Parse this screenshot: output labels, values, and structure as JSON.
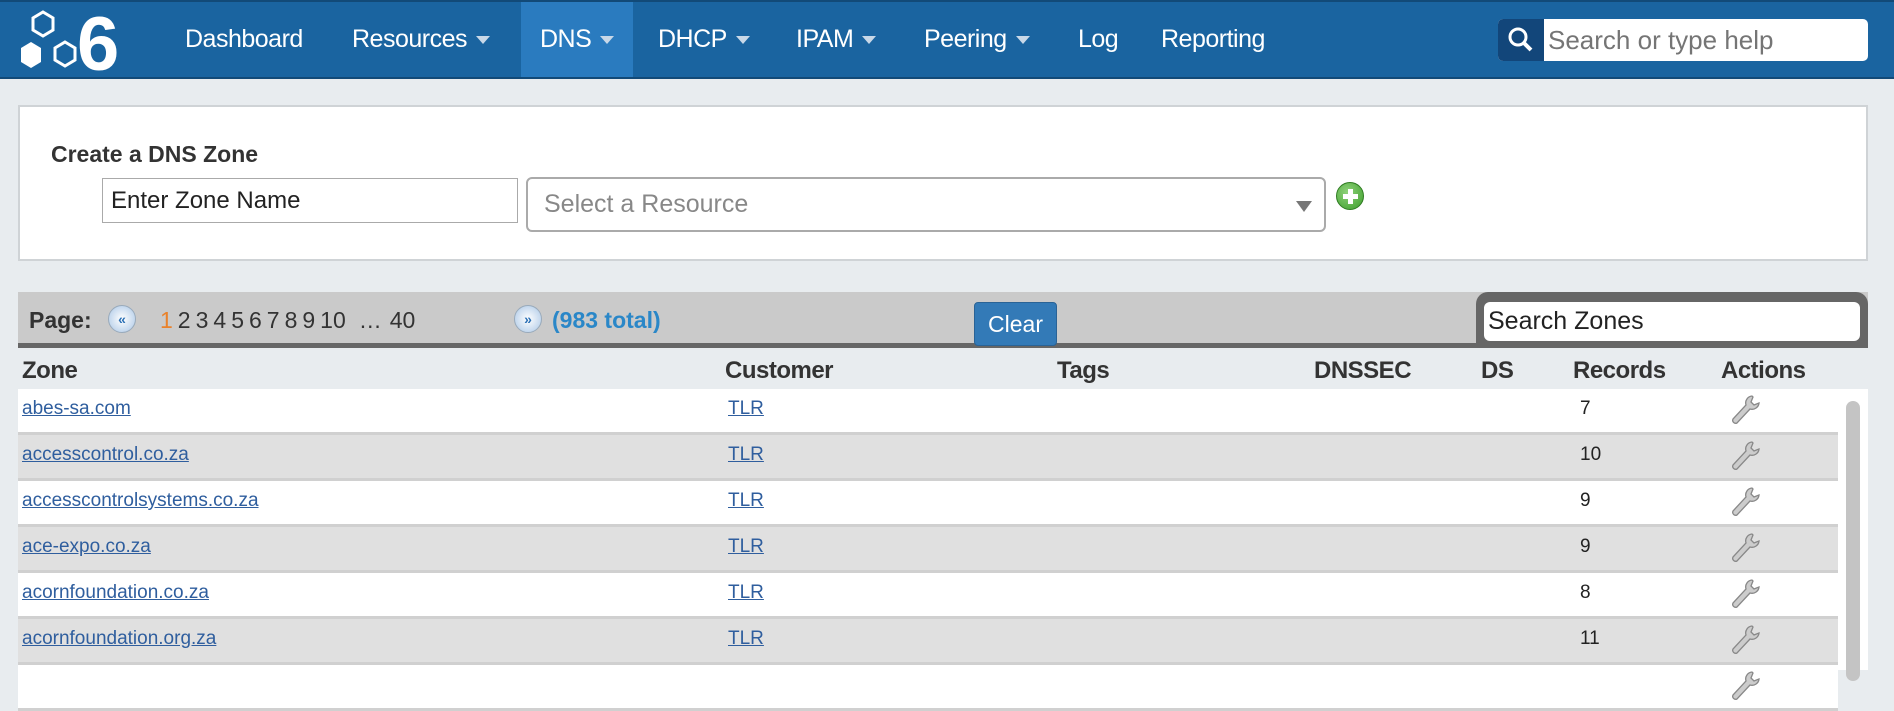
{
  "nav": {
    "items": [
      {
        "label": "Dashboard",
        "dropdown": false
      },
      {
        "label": "Resources",
        "dropdown": true
      },
      {
        "label": "DNS",
        "dropdown": true,
        "active": true
      },
      {
        "label": "DHCP",
        "dropdown": true
      },
      {
        "label": "IPAM",
        "dropdown": true
      },
      {
        "label": "Peering",
        "dropdown": true
      },
      {
        "label": "Log",
        "dropdown": false
      },
      {
        "label": "Reporting",
        "dropdown": false
      }
    ],
    "search_placeholder": "Search or type help"
  },
  "create": {
    "title": "Create a DNS Zone",
    "zone_placeholder": "Enter Zone Name",
    "resource_placeholder": "Select a Resource",
    "add_icon": "plus-circle-icon"
  },
  "pager": {
    "label": "Page:",
    "current": "1",
    "pages": [
      "2",
      "3",
      "4",
      "5",
      "6",
      "7",
      "8",
      "9",
      "10",
      "…",
      "40"
    ],
    "total": "(983 total)",
    "clear": "Clear",
    "search_placeholder": "Search Zones"
  },
  "table": {
    "headers": [
      "Zone",
      "Customer",
      "Tags",
      "DNSSEC",
      "DS",
      "Records",
      "Actions"
    ],
    "rows": [
      {
        "zone": "abes-sa.com",
        "customer": "TLR",
        "records": "7"
      },
      {
        "zone": "accesscontrol.co.za",
        "customer": "TLR",
        "records": "10"
      },
      {
        "zone": "accesscontrolsystems.co.za",
        "customer": "TLR",
        "records": "9"
      },
      {
        "zone": "ace-expo.co.za",
        "customer": "TLR",
        "records": "9"
      },
      {
        "zone": "acornfoundation.co.za",
        "customer": "TLR",
        "records": "8"
      },
      {
        "zone": "acornfoundation.org.za",
        "customer": "TLR",
        "records": "11"
      },
      {
        "zone": "",
        "customer": "",
        "records": ""
      }
    ]
  },
  "colors": {
    "nav": "#1a64a0",
    "nav_active": "#2a7bbf",
    "accent": "#337ab7",
    "current_page": "#e9822b"
  }
}
